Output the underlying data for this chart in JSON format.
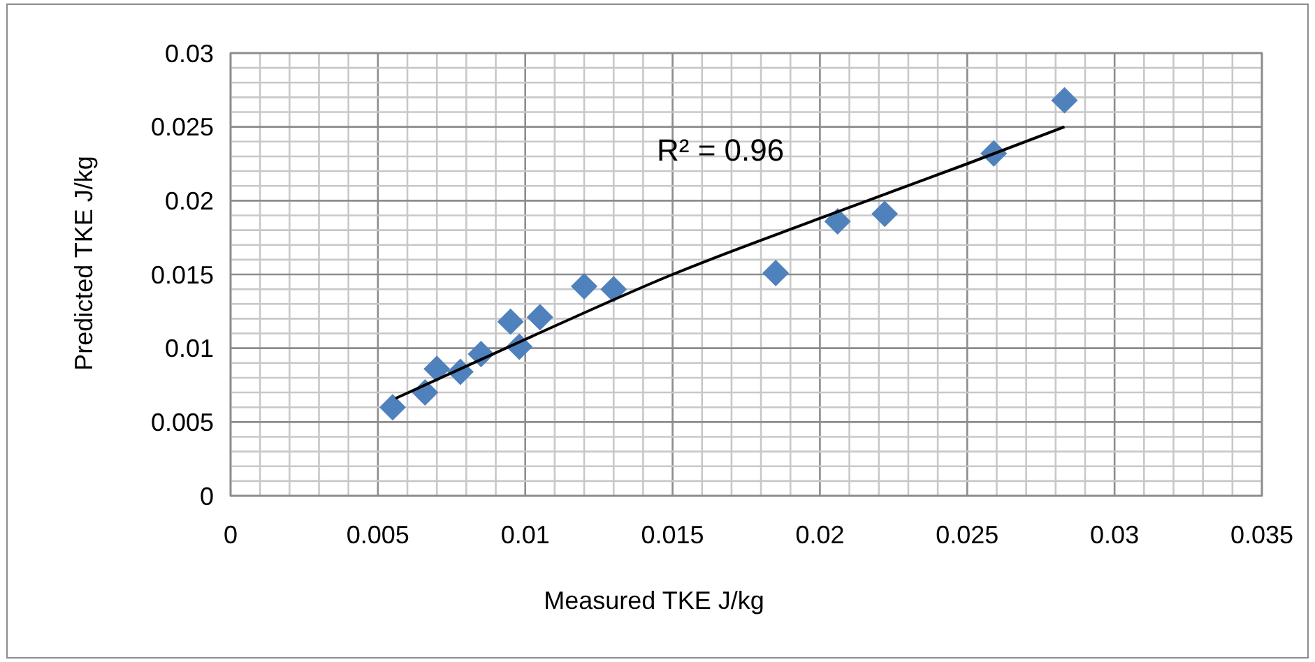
{
  "chart_data": {
    "type": "scatter",
    "xlabel": "Measured TKE J/kg",
    "ylabel": "Predicted TKE J/kg",
    "annotations": [
      "R² = 0.96"
    ],
    "xlim": [
      0,
      0.035
    ],
    "xticks": [
      0,
      0.005,
      0.01,
      0.015,
      0.02,
      0.025,
      0.03,
      0.035
    ],
    "ylim": [
      0,
      0.03
    ],
    "yticks": [
      0,
      0.005,
      0.01,
      0.015,
      0.02,
      0.025,
      0.03
    ],
    "grid": true,
    "series": [
      {
        "marker": "diamond",
        "color": "#4f81bd",
        "x": [
          0.0055,
          0.0066,
          0.007,
          0.0078,
          0.0085,
          0.0095,
          0.0098,
          0.0105,
          0.012,
          0.013,
          0.0185,
          0.0206,
          0.0222,
          0.0259,
          0.0283
        ],
        "values": [
          0.006,
          0.007,
          0.0086,
          0.0084,
          0.0096,
          0.0118,
          0.0101,
          0.0121,
          0.0142,
          0.014,
          0.0151,
          0.0186,
          0.0191,
          0.0232,
          0.0268
        ]
      },
      {
        "type": "line",
        "marker": "none",
        "line_style": "solid",
        "color": "#000000",
        "x": [
          0.0056,
          0.01,
          0.015,
          0.02,
          0.025,
          0.0283
        ],
        "values": [
          0.0066,
          0.0106,
          0.015,
          0.0188,
          0.0225,
          0.025
        ]
      }
    ]
  }
}
